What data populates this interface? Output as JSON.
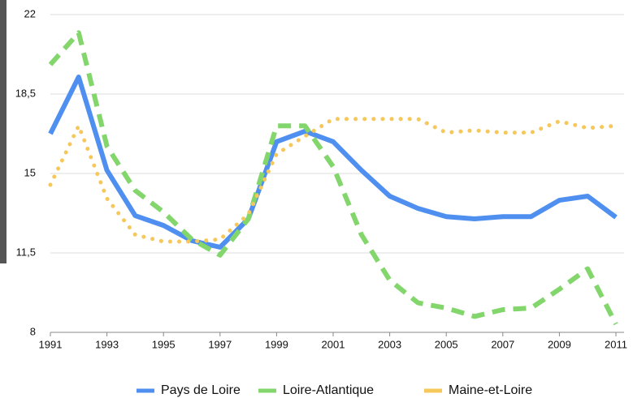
{
  "chart_data": {
    "type": "line",
    "x": [
      1991,
      1992,
      1993,
      1994,
      1995,
      1996,
      1997,
      1998,
      1999,
      2000,
      2001,
      2002,
      2003,
      2004,
      2005,
      2006,
      2007,
      2008,
      2009,
      2010,
      2011
    ],
    "xlim": [
      1991,
      2011
    ],
    "xticks": [
      1991,
      1993,
      1995,
      1997,
      1999,
      2001,
      2003,
      2005,
      2007,
      2009,
      2011
    ],
    "ylim": [
      8,
      22
    ],
    "yticks": [
      8,
      {
        "value": 11.5,
        "label": "11,5"
      },
      15,
      {
        "value": 18.5,
        "label": "18,5"
      },
      22
    ],
    "grid": true,
    "legend": "bottom",
    "series": [
      {
        "name": "Pays de Loire",
        "color": "#4f8ff0",
        "style": "solid",
        "values": [
          16.75,
          19.25,
          15.14,
          13.14,
          12.71,
          12.04,
          11.75,
          13.0,
          16.4,
          16.86,
          16.4,
          15.14,
          14.0,
          13.46,
          13.1,
          13.0,
          13.1,
          13.1,
          13.82,
          14.0,
          13.07
        ]
      },
      {
        "name": "Loire-Atlantique",
        "color": "#82d66c",
        "style": "dashed",
        "values": [
          19.8,
          21.2,
          16.2,
          14.25,
          13.3,
          12.1,
          11.4,
          13.0,
          17.1,
          17.1,
          15.3,
          12.3,
          10.3,
          9.3,
          9.07,
          8.7,
          9.0,
          9.07,
          9.9,
          10.8,
          8.36
        ]
      },
      {
        "name": "Maine-et-Loire",
        "color": "#f6c85c",
        "style": "dotted",
        "values": [
          14.5,
          17.1,
          13.9,
          12.3,
          12.0,
          12.0,
          12.1,
          13.2,
          15.86,
          16.64,
          17.4,
          17.4,
          17.4,
          17.4,
          16.8,
          16.9,
          16.8,
          16.8,
          17.3,
          17.0,
          17.1
        ]
      }
    ]
  }
}
